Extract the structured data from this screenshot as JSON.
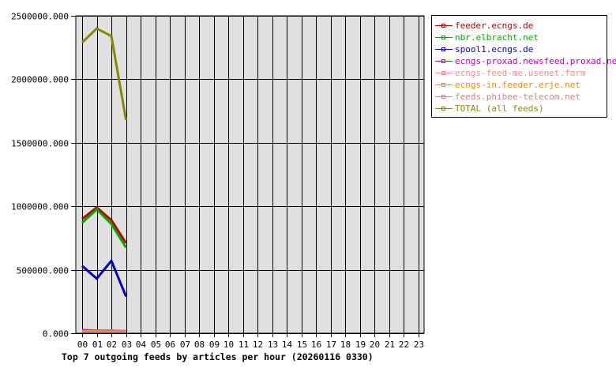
{
  "chart_data": {
    "type": "line",
    "title": "Top 7 outgoing feeds by articles per hour (20260116 0330)",
    "xlabel": "",
    "ylabel": "",
    "ylim": [
      0,
      2500000
    ],
    "grid": true,
    "legend_position": "right",
    "y_ticks": [
      "0.000",
      "500000.000",
      "1000000.000",
      "1500000.000",
      "2000000.000",
      "2500000.000"
    ],
    "categories": [
      "00",
      "01",
      "02",
      "03",
      "04",
      "05",
      "06",
      "07",
      "08",
      "09",
      "10",
      "11",
      "12",
      "13",
      "14",
      "15",
      "16",
      "17",
      "18",
      "19",
      "20",
      "21",
      "22",
      "23"
    ],
    "series": [
      {
        "name": "feeder.ecngs.de",
        "color": "#bb0000",
        "values": [
          900000,
          990000,
          890000,
          710000
        ]
      },
      {
        "name": "nbr.elbracht.net",
        "color": "#00aa00",
        "values": [
          870000,
          975000,
          860000,
          675000
        ]
      },
      {
        "name": "spool1.ecngs.de",
        "color": "#0000bb",
        "values": [
          530000,
          430000,
          570000,
          290000
        ]
      },
      {
        "name": "ecngs-proxad.newsfeed.proxad.net",
        "color": "#bb00bb",
        "values": [
          25000,
          20000,
          20000,
          18000
        ]
      },
      {
        "name": "ecngs-feed-me.usenet.farm",
        "color": "#ff8888",
        "values": [
          15000,
          15000,
          15000,
          15000
        ]
      },
      {
        "name": "ecngs-in.feeder.erje.net",
        "color": "#ff8800",
        "values": [
          18000,
          18000,
          18000,
          18000
        ]
      },
      {
        "name": "feeds.phibee-telecom.net",
        "color": "#cc8888",
        "values": [
          12000,
          12000,
          12000,
          12000
        ]
      },
      {
        "name": "TOTAL (all feeds)",
        "color": "#888800",
        "values": [
          2290000,
          2400000,
          2340000,
          1680000
        ]
      }
    ]
  },
  "colors": {
    "plot_background": "#e0e0e0",
    "grid": "#000000",
    "page_background": "#ffffff"
  }
}
